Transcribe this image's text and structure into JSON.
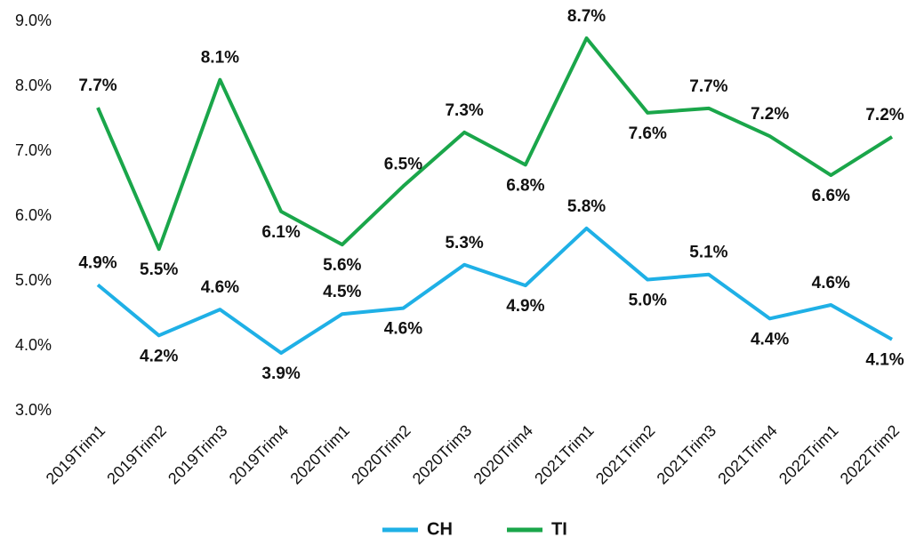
{
  "chart_data": {
    "type": "line",
    "categories": [
      "2019Trim1",
      "2019Trim2",
      "2019Trim3",
      "2019Trim4",
      "2020Trim1",
      "2020Trim2",
      "2020Trim3",
      "2020Trim4",
      "2021Trim1",
      "2021Trim2",
      "2021Trim3",
      "2021Trim4",
      "2022Trim1",
      "2022Trim2"
    ],
    "series": [
      {
        "name": "CH",
        "color": "#1fb0e6",
        "values": [
          4.94,
          4.16,
          4.56,
          3.89,
          4.49,
          4.58,
          5.25,
          4.93,
          5.81,
          5.02,
          5.1,
          4.42,
          4.63,
          4.1
        ],
        "value_labels": [
          "4.9%",
          "4.2%",
          "4.6%",
          "3.9%",
          "4.5%",
          "4.6%",
          "5.3%",
          "4.9%",
          "5.8%",
          "5.0%",
          "5.1%",
          "4.4%",
          "4.6%",
          "4.1%"
        ]
      },
      {
        "name": "TI",
        "color": "#1aa64a",
        "values": [
          7.67,
          5.49,
          8.1,
          6.07,
          5.56,
          6.46,
          7.29,
          6.79,
          8.74,
          7.59,
          7.66,
          7.23,
          6.63,
          7.22
        ],
        "value_labels": [
          "7.7%",
          "5.5%",
          "8.1%",
          "6.1%",
          "5.6%",
          "6.5%",
          "7.3%",
          "6.8%",
          "8.7%",
          "7.6%",
          "7.7%",
          "7.2%",
          "6.6%",
          "7.2%"
        ]
      }
    ],
    "ylim": [
      3,
      9
    ],
    "yticks": [
      {
        "value": 3,
        "label": "3.0%"
      },
      {
        "value": 4,
        "label": "4.0%"
      },
      {
        "value": 5,
        "label": "5.0%"
      },
      {
        "value": 6,
        "label": "6.0%"
      },
      {
        "value": 7,
        "label": "7.0%"
      },
      {
        "value": 8,
        "label": "8.0%"
      },
      {
        "value": 9,
        "label": "9.0%"
      }
    ],
    "grid": false,
    "legend": "bottom"
  }
}
